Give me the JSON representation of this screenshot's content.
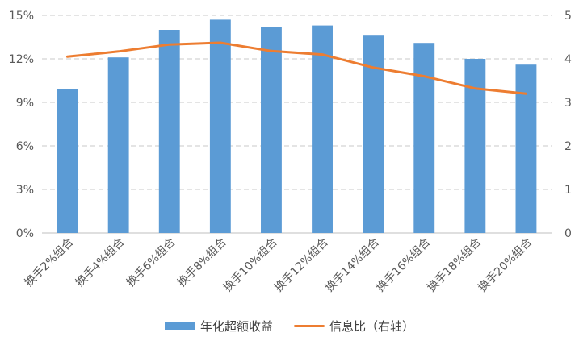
{
  "chart_data": {
    "type": "bar+line",
    "categories": [
      "换手2%组合",
      "换手4%组合",
      "换手6%组合",
      "换手8%组合",
      "换手10%组合",
      "换手12%组合",
      "换手14%组合",
      "换手16%组合",
      "换手18%组合",
      "换手20%组合"
    ],
    "series": [
      {
        "name": "年化超额收益",
        "type": "bar",
        "axis": "left",
        "color": "#5B9BD5",
        "values": [
          9.9,
          12.1,
          14.0,
          14.7,
          14.2,
          14.3,
          13.6,
          13.1,
          12.0,
          11.6
        ]
      },
      {
        "name": "信息比（右轴）",
        "type": "line",
        "axis": "right",
        "color": "#ED7D31",
        "values": [
          4.05,
          4.17,
          4.33,
          4.37,
          4.18,
          4.1,
          3.8,
          3.6,
          3.32,
          3.2
        ]
      }
    ],
    "y_left": {
      "min": 0,
      "max": 15,
      "ticks": [
        0,
        3,
        6,
        9,
        12,
        15
      ],
      "tick_labels": [
        "0%",
        "3%",
        "6%",
        "9%",
        "12%",
        "15%"
      ]
    },
    "y_right": {
      "min": 0,
      "max": 5,
      "ticks": [
        0,
        1,
        2,
        3,
        4,
        5
      ],
      "tick_labels": [
        "0",
        "1",
        "2",
        "3",
        "4",
        "5"
      ]
    },
    "grid": true,
    "legend_position": "bottom"
  }
}
